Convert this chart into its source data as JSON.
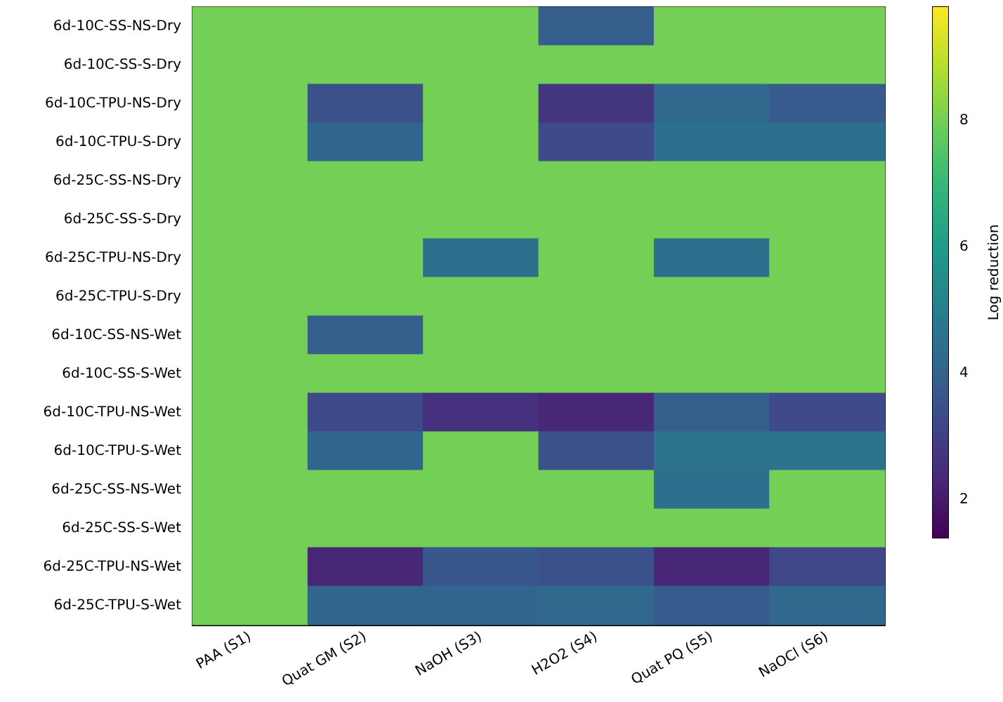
{
  "chart_data": {
    "type": "heatmap",
    "clabel": "Log reduction",
    "categories": [
      "PAA (S1)",
      "Quat GM (S2)",
      "NaOH (S3)",
      "H2O2 (S4)",
      "Quat PQ (S5)",
      "NaOCl (S6)"
    ],
    "y_categories": [
      "6d-10C-SS-NS-Dry",
      "6d-10C-SS-S-Dry",
      "6d-10C-TPU-NS-Dry",
      "6d-10C-TPU-S-Dry",
      "6d-25C-SS-NS-Dry",
      "6d-25C-SS-S-Dry",
      "6d-25C-TPU-NS-Dry",
      "6d-25C-TPU-S-Dry",
      "6d-10C-SS-NS-Wet",
      "6d-10C-SS-S-Wet",
      "6d-10C-TPU-NS-Wet",
      "6d-10C-TPU-S-Wet",
      "6d-25C-SS-NS-Wet",
      "6d-25C-SS-S-Wet",
      "6d-25C-TPU-NS-Wet",
      "6d-25C-TPU-S-Wet"
    ],
    "cells": [
      [
        8,
        8,
        8,
        3.9,
        8,
        8
      ],
      [
        8,
        8,
        8,
        8,
        8,
        8
      ],
      [
        8,
        3.5,
        8,
        2.7,
        4.2,
        3.8
      ],
      [
        8,
        4.1,
        8,
        3.3,
        4.5,
        4.5
      ],
      [
        8,
        8,
        8,
        8,
        8,
        8
      ],
      [
        8,
        8,
        8,
        8,
        8,
        8
      ],
      [
        8,
        8,
        4.5,
        8,
        4.5,
        8
      ],
      [
        8,
        8,
        8,
        8,
        8,
        8
      ],
      [
        8,
        3.9,
        8,
        8,
        8,
        8
      ],
      [
        8,
        8,
        8,
        8,
        8,
        8
      ],
      [
        8,
        3.3,
        2.6,
        2.3,
        3.9,
        3.3
      ],
      [
        8,
        4.1,
        8,
        3.5,
        4.6,
        4.6
      ],
      [
        8,
        8,
        8,
        8,
        4.5,
        8
      ],
      [
        8,
        8,
        8,
        8,
        8,
        8
      ],
      [
        8,
        2.3,
        3.7,
        3.5,
        2.3,
        3.2
      ],
      [
        8,
        4.1,
        4.1,
        4.2,
        3.8,
        4.2
      ]
    ],
    "clim": [
      1.4,
      9.8
    ],
    "cticks": [
      2,
      4,
      6,
      8
    ]
  }
}
